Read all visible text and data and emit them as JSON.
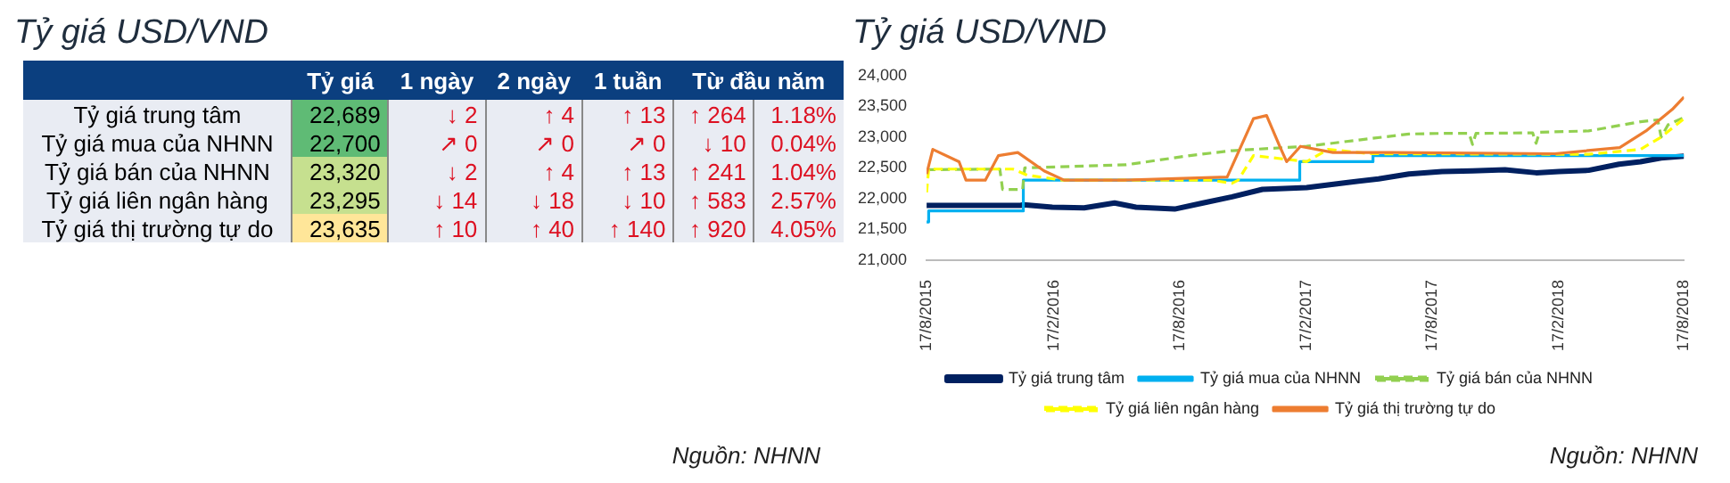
{
  "chart_data": [
    {
      "type": "other",
      "title": "Tỷ giá USD/VND",
      "categories": [
        "Tỷ giá",
        "1 ngày",
        "2 ngày",
        "1 tuần",
        "Từ đầu năm"
      ],
      "y_categories": [
        "Tỷ giá trung tâm",
        "Tỷ giá mua của NHNN",
        "Tỷ giá bán của NHNN",
        "Tỷ giá liên ngân hàng",
        "Tỷ giá thị trường tự do"
      ],
      "cell_labels": [
        [
          "22,689",
          "↓ 2",
          "↑ 4",
          "↑ 13",
          "↑ 264",
          "1.18%"
        ],
        [
          "22,700",
          "↗ 0",
          "↗ 0",
          "↗ 0",
          "↓ 10",
          "0.04%"
        ],
        [
          "23,320",
          "↓ 2",
          "↑ 4",
          "↑ 13",
          "↑ 241",
          "1.04%"
        ],
        [
          "23,295",
          "↓ 14",
          "↓ 18",
          "↓ 10",
          "↑ 583",
          "2.57%"
        ],
        [
          "23,635",
          "↑ 10",
          "↑ 40",
          "↑ 140",
          "↑ 920",
          "4.05%"
        ]
      ],
      "colors": [
        "#5fbb75",
        "#5fbb75",
        "#c6e08f",
        "#c6e08f",
        "#ffe699"
      ],
      "annotations": [
        "Nguồn: NHNN"
      ]
    },
    {
      "type": "line",
      "title": "Tỷ giá USD/VND",
      "xlim": [
        "2015-08-17",
        "2018-08-17"
      ],
      "xticks": [
        {
          "value": "2015-08-17",
          "label": "17/8/2015"
        },
        {
          "value": "2016-02-17",
          "label": "17/2/2016"
        },
        {
          "value": "2016-08-17",
          "label": "17/8/2016"
        },
        {
          "value": "2017-02-17",
          "label": "17/2/2017"
        },
        {
          "value": "2017-08-17",
          "label": "17/8/2017"
        },
        {
          "value": "2018-02-17",
          "label": "17/2/2018"
        },
        {
          "value": "2018-08-17",
          "label": "17/8/2018"
        }
      ],
      "ylim": [
        21000,
        24000
      ],
      "yticks": [
        {
          "value": 21000,
          "label": "21,000"
        },
        {
          "value": 21500,
          "label": "21,500"
        },
        {
          "value": 22000,
          "label": "22,000"
        },
        {
          "value": 22500,
          "label": "22,500"
        },
        {
          "value": 23000,
          "label": "23,000"
        },
        {
          "value": 23500,
          "label": "23,500"
        },
        {
          "value": 24000,
          "label": "24,000"
        }
      ],
      "grid": false,
      "legend": "bottom",
      "marker": "none",
      "annotations": [
        "Nguồn: NHNN"
      ],
      "series": [
        {
          "name": "Tỷ giá trung tâm",
          "color": "#002060",
          "line_style": "solid",
          "x": [
            "2015-08-17",
            "2015-12-31",
            "2016-01-04",
            "2016-02-15",
            "2016-04-01",
            "2016-05-15",
            "2016-06-15",
            "2016-08-10",
            "2016-09-20",
            "2016-11-01",
            "2016-12-15",
            "2017-02-17",
            "2017-04-15",
            "2017-06-01",
            "2017-07-15",
            "2017-09-01",
            "2017-10-15",
            "2017-12-01",
            "2018-01-15",
            "2018-02-17",
            "2018-04-01",
            "2018-05-15",
            "2018-06-15",
            "2018-07-15",
            "2018-08-17"
          ],
          "values": [
            21890,
            21890,
            21900,
            21860,
            21850,
            21930,
            21860,
            21830,
            21930,
            22030,
            22150,
            22180,
            22260,
            22320,
            22400,
            22440,
            22450,
            22470,
            22420,
            22440,
            22460,
            22560,
            22600,
            22660,
            22689
          ]
        },
        {
          "name": "Tỷ giá mua của NHNN",
          "color": "#00b0f0",
          "type": "step",
          "line_style": "solid",
          "x": [
            "2015-08-17",
            "2015-08-20",
            "2016-01-04",
            "2017-02-07",
            "2017-05-24",
            "2018-08-17"
          ],
          "values": [
            21620,
            21800,
            22300,
            22600,
            22700,
            22700
          ]
        },
        {
          "name": "Tỷ giá bán của NHNN",
          "color": "#92d050",
          "line_style": "dashed",
          "x": [
            "2015-08-17",
            "2015-12-01",
            "2015-12-05",
            "2016-01-03",
            "2016-01-06",
            "2016-06-01",
            "2016-09-01",
            "2016-11-01",
            "2017-02-17",
            "2017-05-01",
            "2017-07-15",
            "2017-09-01",
            "2017-10-10",
            "2017-10-15",
            "2017-10-20",
            "2018-01-10",
            "2018-01-15",
            "2018-01-20",
            "2018-04-01",
            "2018-06-15",
            "2018-07-10",
            "2018-07-15",
            "2018-07-25",
            "2018-08-17"
          ],
          "values": [
            22470,
            22480,
            22150,
            22150,
            22500,
            22550,
            22700,
            22780,
            22850,
            22950,
            23050,
            23060,
            23060,
            22880,
            23060,
            23070,
            22900,
            23080,
            23100,
            23250,
            23280,
            23000,
            23200,
            23320
          ]
        },
        {
          "name": "Tỷ giá liên ngân hàng",
          "color": "#ffff00",
          "line_style": "dashed",
          "x": [
            "2015-08-17",
            "2015-08-20",
            "2015-12-20",
            "2016-01-10",
            "2016-03-01",
            "2016-10-01",
            "2016-11-01",
            "2016-11-10",
            "2016-12-02",
            "2017-01-10",
            "2017-02-17",
            "2017-03-20",
            "2017-05-20",
            "2018-04-01",
            "2018-06-15",
            "2018-07-15",
            "2018-08-17"
          ],
          "values": [
            22100,
            22480,
            22480,
            22380,
            22300,
            22300,
            22250,
            22300,
            22700,
            22650,
            22600,
            22800,
            22730,
            22720,
            22800,
            23000,
            23300
          ]
        },
        {
          "name": "Tỷ giá thị trường tự do",
          "color": "#ed7d31",
          "line_style": "solid",
          "x": [
            "2015-08-17",
            "2015-08-26",
            "2015-10-03",
            "2015-10-13",
            "2015-11-10",
            "2015-11-29",
            "2015-12-27",
            "2016-02-03",
            "2016-03-03",
            "2016-05-27",
            "2016-10-25",
            "2016-12-02",
            "2016-12-21",
            "2017-01-09",
            "2017-01-19",
            "2017-02-08",
            "2017-03-27",
            "2017-06-20",
            "2018-02-11",
            "2018-05-16",
            "2018-06-23",
            "2018-07-31",
            "2018-08-17"
          ],
          "values": [
            22400,
            22800,
            22600,
            22300,
            22300,
            22700,
            22750,
            22450,
            22300,
            22300,
            22350,
            23300,
            23350,
            22850,
            22600,
            22850,
            22750,
            22750,
            22730,
            22830,
            23100,
            23450,
            23650
          ]
        }
      ]
    }
  ]
}
